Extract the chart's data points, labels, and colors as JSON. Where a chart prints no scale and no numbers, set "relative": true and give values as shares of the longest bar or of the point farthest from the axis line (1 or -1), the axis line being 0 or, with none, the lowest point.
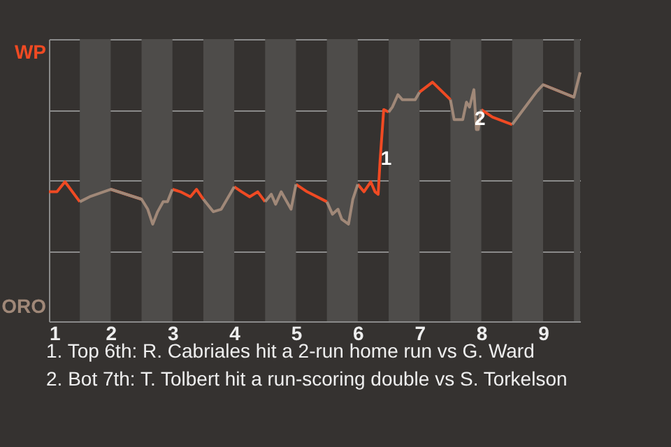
{
  "chart_data": {
    "type": "line",
    "relative": true,
    "grid": "y",
    "tick_labels": "x",
    "x": [
      1,
      1.13,
      1.26,
      1.5,
      1.66,
      2,
      2.5,
      2.6,
      2.68,
      2.76,
      2.85,
      2.92,
      3,
      3.13,
      3.29,
      3.39,
      3.5,
      3.66,
      3.79,
      4,
      4.12,
      4.25,
      4.38,
      4.5,
      4.6,
      4.67,
      4.76,
      4.92,
      5,
      5.18,
      5.5,
      5.59,
      5.68,
      5.74,
      5.85,
      5.92,
      6,
      6.1,
      6.21,
      6.28,
      6.33,
      6.36,
      6.42,
      6.5,
      6.56,
      6.65,
      6.72,
      6.93,
      7,
      7.21,
      7.5,
      7.56,
      7.7,
      7.76,
      7.81,
      7.88,
      7.92,
      7.95,
      8,
      8.18,
      8.5,
      8.89,
      9,
      9.5,
      9.6
    ],
    "xlim": [
      1,
      9.6
    ],
    "xticks": [
      1,
      2,
      3,
      4,
      5,
      6,
      7,
      8,
      9
    ],
    "series": [
      {
        "name": "WP",
        "color": "#f04a23",
        "values": [
          0.52,
          0.52,
          0.56,
          0.48,
          null,
          0.53,
          0.49,
          null,
          null,
          null,
          null,
          null,
          0.53,
          0.52,
          0.5,
          0.53,
          0.49,
          null,
          null,
          0.54,
          0.52,
          0.5,
          0.52,
          0.48,
          null,
          null,
          null,
          null,
          0.55,
          0.52,
          0.48,
          null,
          null,
          null,
          null,
          null,
          0.55,
          0.52,
          0.56,
          0.52,
          0.51,
          0.64,
          0.85,
          0.84,
          null,
          null,
          null,
          null,
          0.92,
          0.96,
          0.89,
          null,
          null,
          null,
          null,
          null,
          null,
          null,
          0.85,
          0.82,
          0.79,
          null,
          0.95,
          0.9,
          null
        ]
      },
      {
        "name": "ORO",
        "color": "#a08878",
        "values": [
          null,
          null,
          null,
          0.48,
          0.5,
          0.53,
          0.49,
          0.45,
          0.39,
          0.44,
          0.48,
          0.48,
          0.53,
          null,
          null,
          null,
          0.49,
          0.44,
          0.45,
          0.54,
          null,
          null,
          null,
          0.48,
          0.51,
          0.47,
          0.52,
          0.45,
          0.55,
          null,
          0.48,
          0.43,
          0.45,
          0.41,
          0.39,
          0.49,
          0.55,
          null,
          null,
          null,
          null,
          null,
          null,
          0.84,
          0.86,
          0.91,
          0.89,
          0.89,
          0.92,
          null,
          0.89,
          0.81,
          0.81,
          0.88,
          0.86,
          0.93,
          0.77,
          0.77,
          0.85,
          null,
          0.79,
          0.92,
          0.95,
          0.9,
          1.0
        ]
      }
    ],
    "bands": [
      {
        "axis": "x",
        "from": 1.5,
        "to": 2,
        "color": "#4e4c4a"
      },
      {
        "axis": "x",
        "from": 2.5,
        "to": 3,
        "color": "#4e4c4a"
      },
      {
        "axis": "x",
        "from": 3.5,
        "to": 4,
        "color": "#4e4c4a"
      },
      {
        "axis": "x",
        "from": 4.5,
        "to": 5,
        "color": "#4e4c4a"
      },
      {
        "axis": "x",
        "from": 5.5,
        "to": 6,
        "color": "#4e4c4a"
      },
      {
        "axis": "x",
        "from": 6.5,
        "to": 7,
        "color": "#4e4c4a"
      },
      {
        "axis": "x",
        "from": 7.5,
        "to": 8,
        "color": "#4e4c4a"
      },
      {
        "axis": "x",
        "from": 8.5,
        "to": 9,
        "color": "#4e4c4a"
      },
      {
        "axis": "x",
        "from": 9.5,
        "to": 9.6,
        "color": "#4e4c4a"
      }
    ],
    "annotations": [
      {
        "text": "1",
        "x": 6.46,
        "y": 0.65
      },
      {
        "text": "2",
        "x": 7.98,
        "y": 0.81
      },
      "1. Top 6th: R. Cabriales hit a 2-run home run vs G. Ward",
      "2. Bot 7th: T. Tolbert hit a run-scoring double vs S. Torkelson"
    ]
  }
}
